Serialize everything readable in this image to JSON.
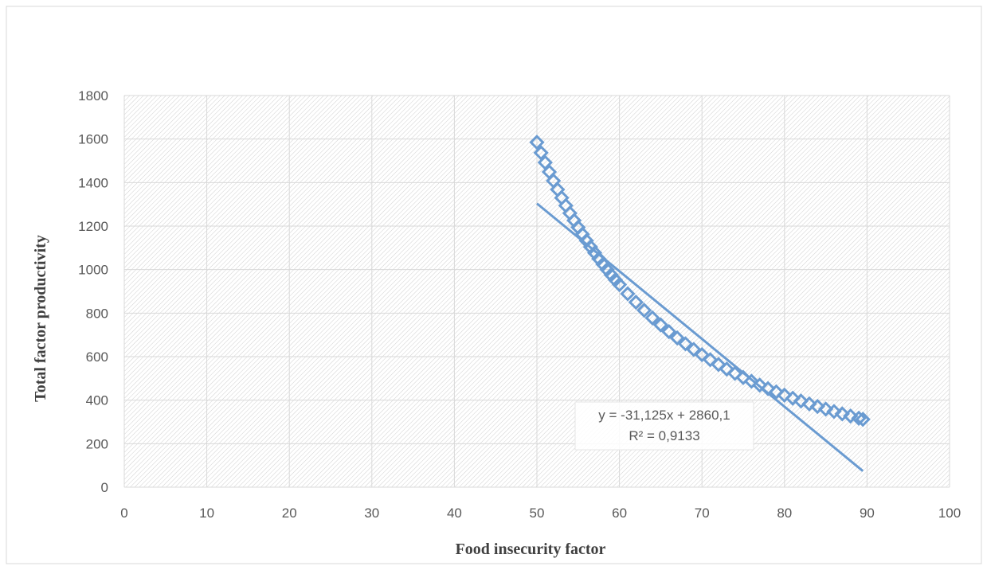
{
  "chart_data": {
    "type": "scatter",
    "title": "",
    "xlabel": "Food insecurity  factor",
    "ylabel": "Total factor productivity",
    "xlim": [
      0,
      100
    ],
    "ylim": [
      0,
      1800
    ],
    "xticks": [
      "0",
      "10",
      "20",
      "30",
      "40",
      "50",
      "60",
      "70",
      "80",
      "90",
      "100"
    ],
    "yticks": [
      "0",
      "200",
      "400",
      "600",
      "800",
      "1000",
      "1200",
      "1400",
      "1600",
      "1800"
    ],
    "grid": true,
    "legend": "none",
    "series": [
      {
        "marker": "diamond",
        "color": "#6a9bd1",
        "points": [
          [
            50,
            1585
          ],
          [
            50.5,
            1537
          ],
          [
            51,
            1492
          ],
          [
            51.5,
            1449
          ],
          [
            52,
            1408
          ],
          [
            52.5,
            1368
          ],
          [
            53,
            1330
          ],
          [
            53.5,
            1294
          ],
          [
            54,
            1259
          ],
          [
            54.5,
            1226
          ],
          [
            55,
            1194
          ],
          [
            55.5,
            1163
          ],
          [
            56,
            1133
          ],
          [
            56.5,
            1104
          ],
          [
            57,
            1077
          ],
          [
            57.5,
            1050
          ],
          [
            58,
            1025
          ],
          [
            58.5,
            1000
          ],
          [
            59,
            976
          ],
          [
            59.5,
            953
          ],
          [
            60,
            931
          ],
          [
            61,
            889
          ],
          [
            62,
            850
          ],
          [
            63,
            813
          ],
          [
            64,
            778
          ],
          [
            65,
            746
          ],
          [
            66,
            715
          ],
          [
            67,
            686
          ],
          [
            68,
            659
          ],
          [
            69,
            633
          ],
          [
            70,
            609
          ],
          [
            71,
            586
          ],
          [
            72,
            564
          ],
          [
            73,
            543
          ],
          [
            74,
            523
          ],
          [
            75,
            504
          ],
          [
            76,
            487
          ],
          [
            77,
            469
          ],
          [
            78,
            453
          ],
          [
            79,
            438
          ],
          [
            80,
            423
          ],
          [
            81,
            409
          ],
          [
            82,
            396
          ],
          [
            83,
            383
          ],
          [
            84,
            371
          ],
          [
            85,
            359
          ],
          [
            86,
            348
          ],
          [
            87,
            337
          ],
          [
            88,
            327
          ],
          [
            89,
            317
          ],
          [
            89.5,
            312
          ]
        ]
      }
    ],
    "trendline": {
      "type": "linear",
      "slope": -31.125,
      "intercept": 2860.1,
      "x_range": [
        50,
        89.5
      ],
      "color": "#6a9bd1",
      "equation": "y = -31,125x + 2860,1",
      "r_squared": "R² = 0,9133"
    }
  }
}
